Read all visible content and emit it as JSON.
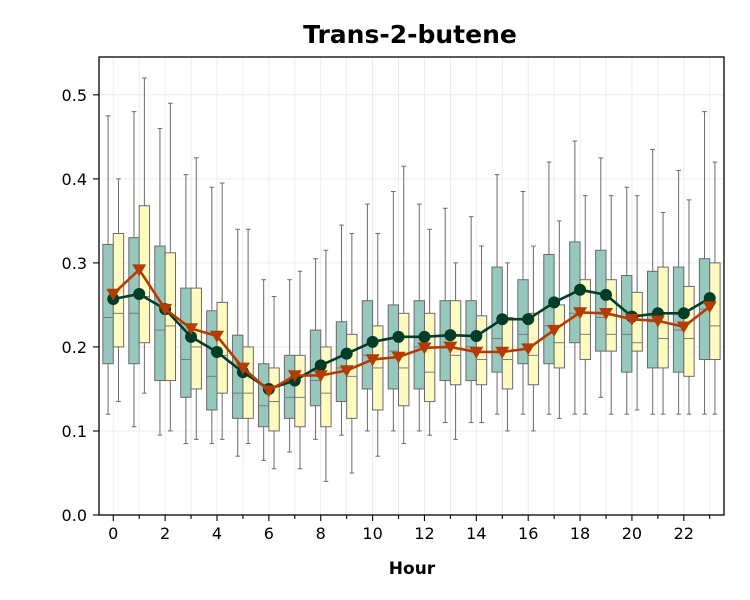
{
  "chart_data": {
    "type": "box",
    "title": "Trans-2-butene",
    "xlabel": "Hour",
    "ylabel": "",
    "xlim": [
      -0.55,
      23.55
    ],
    "ylim": [
      0,
      0.545
    ],
    "x_ticks": [
      0,
      2,
      4,
      6,
      8,
      10,
      12,
      14,
      16,
      18,
      20,
      22
    ],
    "x_tick_labels": [
      "0",
      "2",
      "4",
      "6",
      "8",
      "10",
      "12",
      "14",
      "16",
      "18",
      "20",
      "22"
    ],
    "y_ticks": [
      0.0,
      0.1,
      0.2,
      0.3,
      0.4,
      0.5
    ],
    "y_tick_labels": [
      "0.0",
      "0.1",
      "0.2",
      "0.3",
      "0.4",
      "0.5"
    ],
    "grid": true,
    "legend": "none",
    "hours": [
      0,
      1,
      2,
      3,
      4,
      5,
      6,
      7,
      8,
      9,
      10,
      11,
      12,
      13,
      14,
      15,
      16,
      17,
      18,
      19,
      20,
      21,
      22,
      23
    ],
    "series": [
      {
        "box_color": "#96c8be",
        "line_color": "#003c28",
        "marker": "circle",
        "whislo": [
          0.12,
          0.105,
          0.095,
          0.085,
          0.085,
          0.07,
          0.065,
          0.075,
          0.09,
          0.095,
          0.1,
          0.1,
          0.1,
          0.11,
          0.11,
          0.12,
          0.12,
          0.12,
          0.12,
          0.14,
          0.12,
          0.12,
          0.12,
          0.12
        ],
        "q1": [
          0.18,
          0.18,
          0.16,
          0.14,
          0.125,
          0.115,
          0.105,
          0.115,
          0.13,
          0.135,
          0.15,
          0.15,
          0.15,
          0.16,
          0.16,
          0.17,
          0.18,
          0.18,
          0.205,
          0.195,
          0.17,
          0.175,
          0.17,
          0.185
        ],
        "median": [
          0.235,
          0.24,
          0.22,
          0.185,
          0.165,
          0.145,
          0.13,
          0.14,
          0.16,
          0.175,
          0.19,
          0.195,
          0.2,
          0.2,
          0.2,
          0.21,
          0.215,
          0.225,
          0.24,
          0.235,
          0.215,
          0.23,
          0.22,
          0.245
        ],
        "q3": [
          0.322,
          0.33,
          0.32,
          0.27,
          0.243,
          0.214,
          0.18,
          0.19,
          0.22,
          0.23,
          0.255,
          0.25,
          0.255,
          0.255,
          0.255,
          0.295,
          0.28,
          0.31,
          0.325,
          0.315,
          0.285,
          0.29,
          0.295,
          0.305
        ],
        "whishi": [
          0.475,
          0.48,
          0.46,
          0.405,
          0.39,
          0.34,
          0.28,
          0.28,
          0.305,
          0.345,
          0.37,
          0.385,
          0.37,
          0.365,
          0.355,
          0.405,
          0.385,
          0.42,
          0.445,
          0.425,
          0.39,
          0.435,
          0.41,
          0.48
        ],
        "mean": [
          0.257,
          0.263,
          0.245,
          0.212,
          0.194,
          0.17,
          0.15,
          0.16,
          0.178,
          0.192,
          0.206,
          0.212,
          0.212,
          0.214,
          0.213,
          0.233,
          0.233,
          0.253,
          0.268,
          0.262,
          0.236,
          0.24,
          0.24,
          0.258
        ]
      },
      {
        "box_color": "#fffac0",
        "line_color": "#b43c00",
        "marker": "triangle-down",
        "whislo": [
          0.135,
          0.145,
          0.1,
          0.09,
          0.09,
          0.085,
          0.055,
          0.055,
          0.04,
          0.05,
          0.07,
          0.085,
          0.095,
          0.09,
          0.11,
          0.1,
          0.1,
          0.115,
          0.12,
          0.12,
          0.125,
          0.12,
          0.12,
          0.12
        ],
        "q1": [
          0.2,
          0.205,
          0.16,
          0.15,
          0.145,
          0.115,
          0.1,
          0.105,
          0.105,
          0.115,
          0.125,
          0.13,
          0.135,
          0.155,
          0.155,
          0.15,
          0.155,
          0.175,
          0.185,
          0.195,
          0.195,
          0.175,
          0.165,
          0.185
        ],
        "median": [
          0.24,
          0.26,
          0.225,
          0.2,
          0.19,
          0.145,
          0.135,
          0.14,
          0.145,
          0.165,
          0.175,
          0.175,
          0.17,
          0.19,
          0.185,
          0.185,
          0.19,
          0.205,
          0.215,
          0.215,
          0.205,
          0.21,
          0.21,
          0.225
        ],
        "q3": [
          0.335,
          0.368,
          0.312,
          0.27,
          0.253,
          0.2,
          0.175,
          0.19,
          0.2,
          0.215,
          0.225,
          0.24,
          0.24,
          0.255,
          0.237,
          0.235,
          0.24,
          0.25,
          0.28,
          0.28,
          0.265,
          0.295,
          0.272,
          0.3
        ],
        "whishi": [
          0.4,
          0.52,
          0.49,
          0.425,
          0.395,
          0.34,
          0.26,
          0.29,
          0.315,
          0.335,
          0.335,
          0.415,
          0.34,
          0.3,
          0.32,
          0.3,
          0.32,
          0.35,
          0.38,
          0.38,
          0.38,
          0.36,
          0.375,
          0.42
        ],
        "mean": [
          0.263,
          0.292,
          0.245,
          0.222,
          0.213,
          0.175,
          0.148,
          0.166,
          0.166,
          0.172,
          0.185,
          0.188,
          0.199,
          0.2,
          0.194,
          0.194,
          0.198,
          0.22,
          0.241,
          0.24,
          0.233,
          0.231,
          0.224,
          0.248
        ]
      }
    ]
  }
}
